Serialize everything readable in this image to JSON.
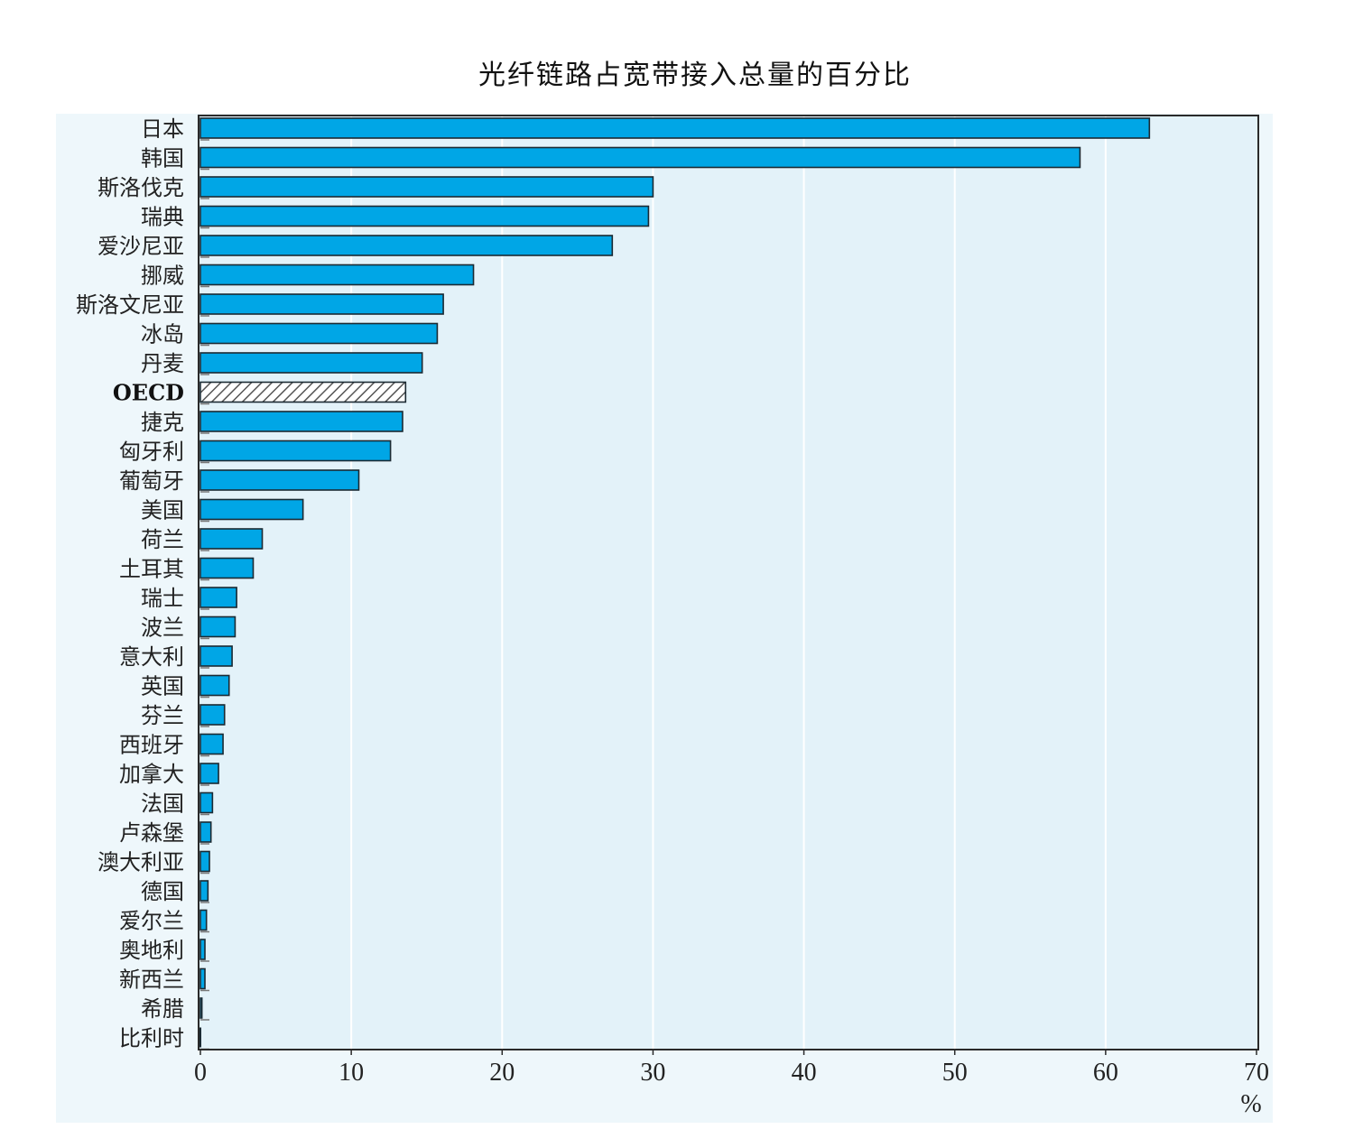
{
  "chart_data": {
    "type": "bar",
    "orientation": "horizontal",
    "title": "光纤链路占宽带接入总量的百分比",
    "xlabel": "%",
    "ylabel": "",
    "xlim": [
      0,
      70
    ],
    "xticks": [
      "0",
      "10",
      "20",
      "30",
      "40",
      "50",
      "60",
      "70"
    ],
    "grid": true,
    "highlight_category": "OECD",
    "colors": {
      "bar": "#00a6e6",
      "bar_stroke": "#1b2a33",
      "highlight_fill": "#ffffff",
      "highlight_hatch": "#555555",
      "plot_background": "#e3f2f9",
      "gridline": "#ffffff"
    },
    "categories": [
      "日本",
      "韩国",
      "斯洛伐克",
      "瑞典",
      "爱沙尼亚",
      "挪威",
      "斯洛文尼亚",
      "冰岛",
      "丹麦",
      "OECD",
      "捷克",
      "匈牙利",
      "葡萄牙",
      "美国",
      "荷兰",
      "土耳其",
      "瑞士",
      "波兰",
      "意大利",
      "英国",
      "芬兰",
      "西班牙",
      "加拿大",
      "法国",
      "卢森堡",
      "澳大利亚",
      "德国",
      "爱尔兰",
      "奥地利",
      "新西兰",
      "希腊",
      "比利时"
    ],
    "values": [
      62.9,
      58.3,
      30.0,
      29.7,
      27.3,
      18.1,
      16.1,
      15.7,
      14.7,
      13.6,
      13.4,
      12.6,
      10.5,
      6.8,
      4.1,
      3.5,
      2.4,
      2.3,
      2.1,
      1.9,
      1.6,
      1.5,
      1.2,
      0.8,
      0.7,
      0.6,
      0.5,
      0.4,
      0.3,
      0.3,
      0.1,
      0.0
    ]
  }
}
